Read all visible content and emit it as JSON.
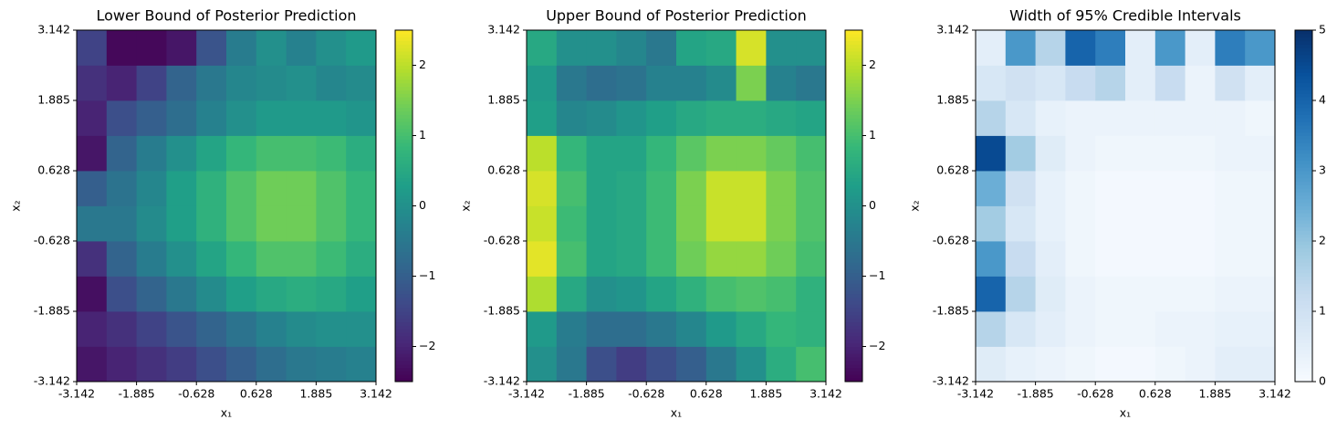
{
  "chart_data": [
    {
      "type": "heatmap",
      "title": "Lower Bound of Posterior Prediction",
      "xlabel": "x₁",
      "ylabel": "x₂",
      "xlim": [
        -3.142,
        3.142
      ],
      "ylim": [
        -3.142,
        3.142
      ],
      "xticks": [
        -3.142,
        -1.885,
        -0.628,
        0.628,
        1.885,
        3.142
      ],
      "yticks": [
        -3.142,
        -1.885,
        -0.628,
        0.628,
        1.885,
        3.142
      ],
      "colormap": "viridis",
      "clim": [
        -2.5,
        2.5
      ],
      "cticks": [
        {
          "value": -2,
          "label": "−2"
        },
        {
          "value": -1,
          "label": "−1"
        },
        0,
        1,
        2
      ],
      "z": [
        [
          -2.2,
          -2.0,
          -1.8,
          -1.6,
          -1.3,
          -1.0,
          -0.7,
          -0.5,
          -0.4,
          -0.3
        ],
        [
          -2.0,
          -1.8,
          -1.5,
          -1.2,
          -0.9,
          -0.6,
          -0.3,
          -0.1,
          0.0,
          0.0
        ],
        [
          -2.3,
          -1.3,
          -0.9,
          -0.5,
          -0.1,
          0.3,
          0.5,
          0.6,
          0.5,
          0.3
        ],
        [
          -1.8,
          -0.9,
          -0.4,
          0.0,
          0.4,
          0.8,
          1.1,
          1.1,
          0.9,
          0.6
        ],
        [
          -0.5,
          -0.5,
          -0.1,
          0.3,
          0.7,
          1.1,
          1.4,
          1.4,
          1.1,
          0.8
        ],
        [
          -1.0,
          -0.6,
          -0.2,
          0.3,
          0.7,
          1.1,
          1.4,
          1.4,
          1.1,
          0.8
        ],
        [
          -2.2,
          -0.9,
          -0.4,
          0.0,
          0.4,
          0.8,
          1.0,
          1.0,
          0.9,
          0.6
        ],
        [
          -2.0,
          -1.3,
          -1.0,
          -0.7,
          -0.3,
          0.0,
          0.2,
          0.2,
          0.2,
          0.1
        ],
        [
          -1.8,
          -2.0,
          -1.5,
          -0.9,
          -0.5,
          -0.2,
          -0.1,
          0.0,
          -0.2,
          -0.1
        ],
        [
          -1.5,
          -2.4,
          -2.4,
          -2.2,
          -1.2,
          -0.4,
          0.0,
          -0.3,
          0.0,
          0.2
        ]
      ]
    },
    {
      "type": "heatmap",
      "title": "Upper Bound of Posterior Prediction",
      "xlabel": "x₁",
      "ylabel": "x₂",
      "xlim": [
        -3.142,
        3.142
      ],
      "ylim": [
        -3.142,
        3.142
      ],
      "xticks": [
        -3.142,
        -1.885,
        -0.628,
        0.628,
        1.885,
        3.142
      ],
      "yticks": [
        -3.142,
        -1.885,
        -0.628,
        0.628,
        1.885,
        3.142
      ],
      "colormap": "viridis",
      "clim": [
        -2.5,
        2.5
      ],
      "cticks": [
        {
          "value": -2,
          "label": "−2"
        },
        {
          "value": -1,
          "label": "−1"
        },
        0,
        1,
        2
      ],
      "z": [
        [
          0.0,
          -0.5,
          -1.3,
          -1.6,
          -1.3,
          -1.0,
          -0.5,
          0.0,
          0.6,
          1.0
        ],
        [
          0.2,
          -0.4,
          -0.7,
          -0.7,
          -0.5,
          -0.2,
          0.2,
          0.5,
          0.8,
          0.7
        ],
        [
          1.9,
          0.5,
          0.0,
          0.1,
          0.4,
          0.7,
          1.0,
          1.1,
          1.0,
          0.7
        ],
        [
          2.3,
          1.0,
          0.4,
          0.5,
          0.9,
          1.4,
          1.7,
          1.7,
          1.4,
          1.0
        ],
        [
          2.1,
          0.9,
          0.4,
          0.5,
          0.9,
          1.5,
          2.1,
          2.1,
          1.5,
          1.1
        ],
        [
          2.2,
          1.0,
          0.4,
          0.5,
          0.9,
          1.5,
          2.1,
          2.1,
          1.5,
          1.1
        ],
        [
          2.0,
          0.8,
          0.4,
          0.4,
          0.8,
          1.2,
          1.5,
          1.5,
          1.3,
          1.0
        ],
        [
          0.3,
          -0.2,
          -0.1,
          0.1,
          0.3,
          0.5,
          0.6,
          0.6,
          0.5,
          0.4
        ],
        [
          0.2,
          -0.5,
          -0.7,
          -0.6,
          -0.3,
          -0.3,
          -0.1,
          1.5,
          -0.3,
          -0.5
        ],
        [
          0.5,
          0.0,
          0.0,
          -0.2,
          -0.5,
          0.4,
          0.5,
          2.2,
          0.0,
          0.0
        ]
      ]
    },
    {
      "type": "heatmap",
      "title": "Width of 95% Credible Intervals",
      "xlabel": "x₁",
      "ylabel": "x₂",
      "xlim": [
        -3.142,
        3.142
      ],
      "ylim": [
        -3.142,
        3.142
      ],
      "xticks": [
        -3.142,
        -1.885,
        -0.628,
        0.628,
        1.885,
        3.142
      ],
      "yticks": [
        -3.142,
        -1.885,
        -0.628,
        0.628,
        1.885,
        3.142
      ],
      "colormap": "Blues",
      "clim": [
        0,
        5
      ],
      "cticks": [
        0,
        1,
        2,
        3,
        4,
        5
      ],
      "z": [
        [
          0.6,
          0.4,
          0.3,
          0.2,
          0.1,
          0.1,
          0.2,
          0.3,
          0.5,
          0.5
        ],
        [
          1.5,
          0.8,
          0.5,
          0.3,
          0.2,
          0.2,
          0.3,
          0.3,
          0.4,
          0.4
        ],
        [
          4.0,
          1.5,
          0.6,
          0.3,
          0.2,
          0.2,
          0.2,
          0.2,
          0.3,
          0.3
        ],
        [
          3.0,
          1.2,
          0.5,
          0.2,
          0.1,
          0.1,
          0.1,
          0.1,
          0.2,
          0.2
        ],
        [
          1.8,
          0.8,
          0.4,
          0.2,
          0.1,
          0.1,
          0.1,
          0.1,
          0.2,
          0.2
        ],
        [
          2.5,
          1.0,
          0.4,
          0.2,
          0.1,
          0.1,
          0.1,
          0.1,
          0.2,
          0.2
        ],
        [
          4.5,
          1.8,
          0.6,
          0.3,
          0.2,
          0.2,
          0.2,
          0.2,
          0.3,
          0.3
        ],
        [
          1.5,
          0.8,
          0.4,
          0.3,
          0.3,
          0.3,
          0.3,
          0.3,
          0.3,
          0.2
        ],
        [
          0.8,
          1.0,
          0.8,
          1.2,
          1.5,
          0.5,
          1.2,
          0.3,
          1.0,
          0.5
        ],
        [
          0.5,
          3.0,
          1.5,
          4.0,
          3.5,
          0.5,
          3.0,
          0.5,
          3.5,
          3.0
        ]
      ]
    }
  ]
}
